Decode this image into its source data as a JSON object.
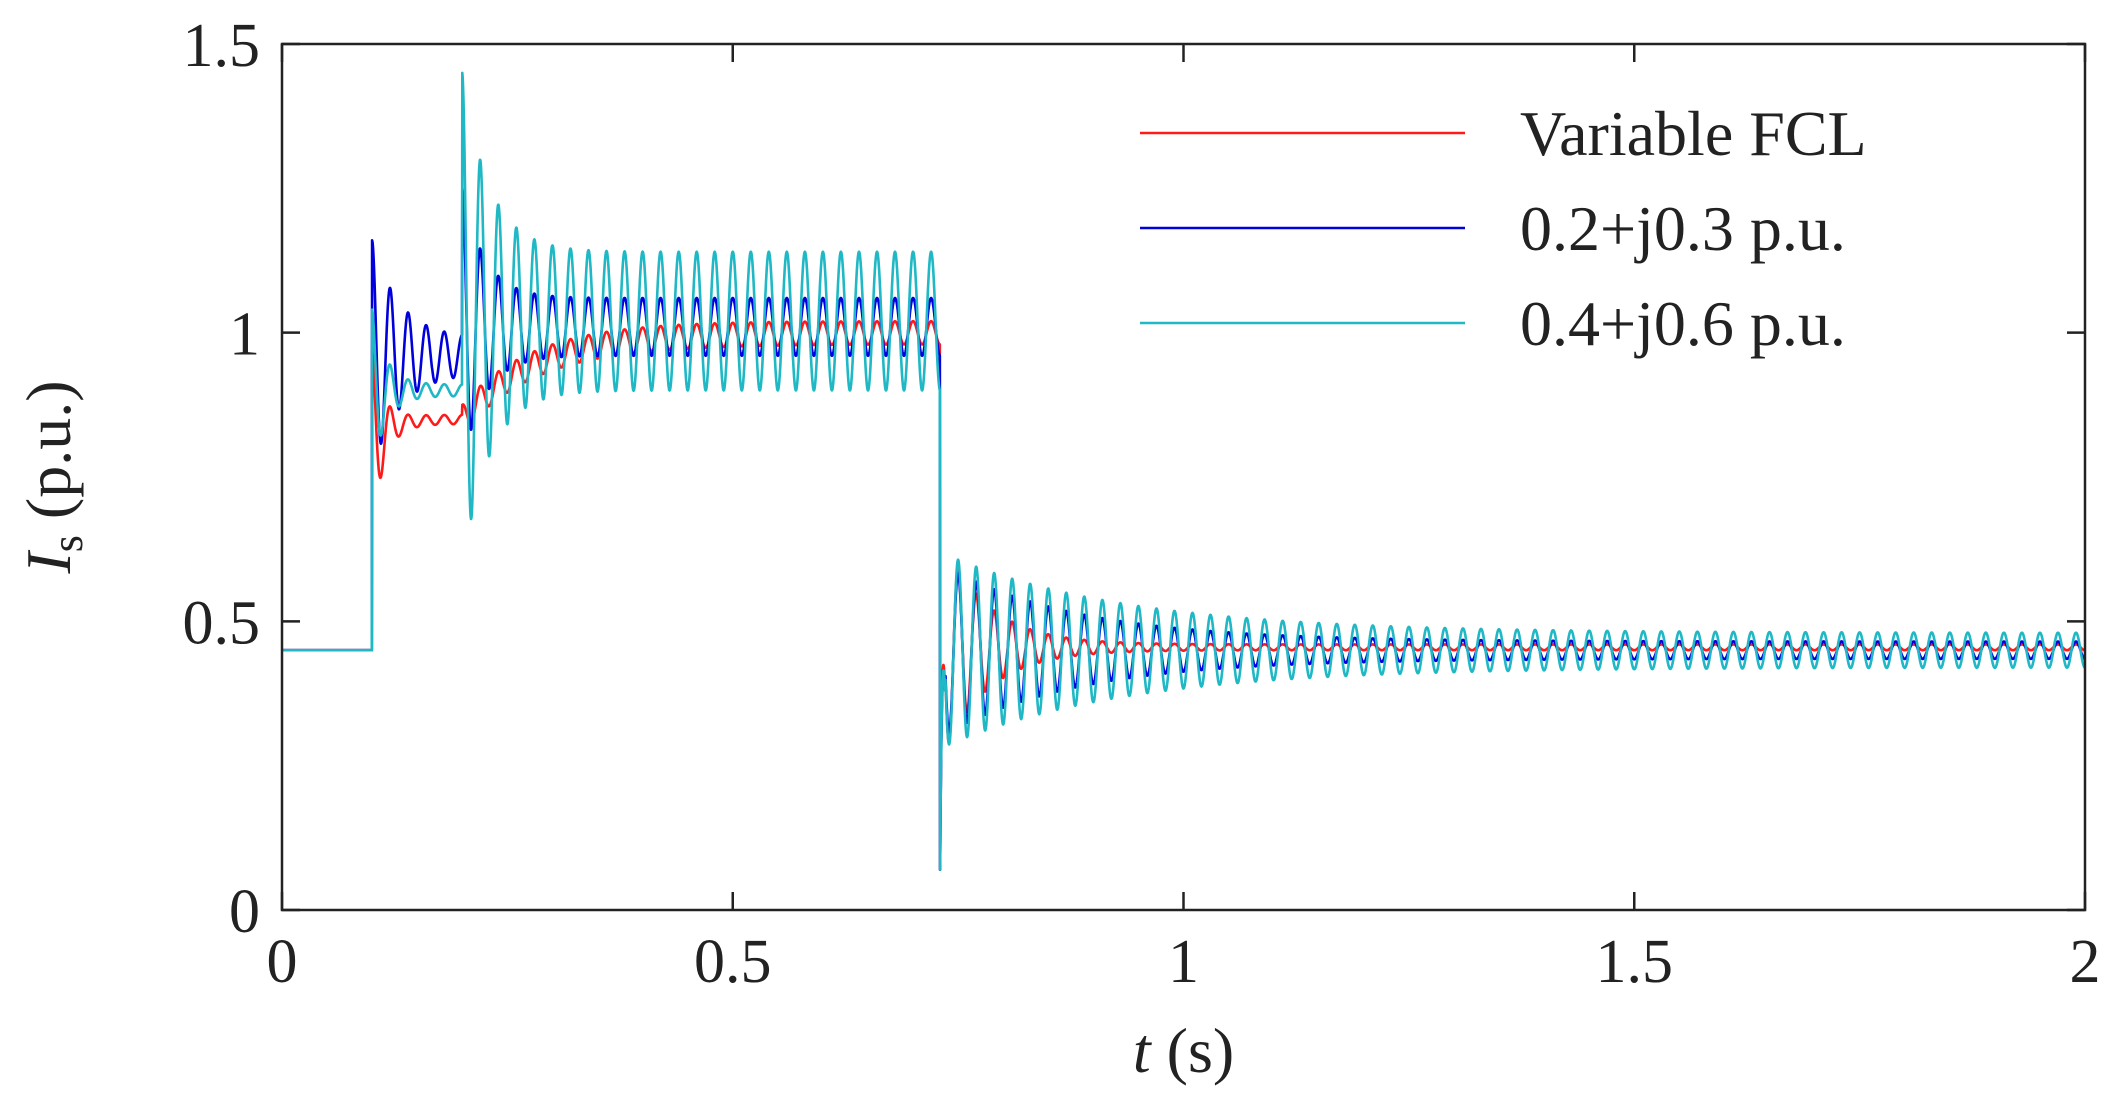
{
  "chart_data": {
    "type": "line",
    "title": "",
    "xlabel": {
      "italic": "t",
      "rest": " (s)"
    },
    "ylabel": {
      "italic": "I",
      "sub": "s",
      "rest": " (p.u.)"
    },
    "xlim": [
      0,
      2
    ],
    "ylim": [
      0,
      1.5
    ],
    "xticks": [
      0,
      0.5,
      1,
      1.5,
      2
    ],
    "yticks": [
      0,
      0.5,
      1,
      1.5
    ],
    "xtick_labels": [
      "0",
      "0.5",
      "1",
      "1.5",
      "2"
    ],
    "ytick_labels": [
      "0",
      "0.5",
      "1",
      "1.5"
    ],
    "grid": false,
    "legend_position": "top-right",
    "oscillation_frequency_hz": 50,
    "series": [
      {
        "name": "Variable FCL",
        "color": "#ff1a1a",
        "segments": [
          {
            "t0": 0,
            "t1": 0.1,
            "base": 0.45,
            "amp": 0
          },
          {
            "t0": 0.1,
            "t1": 0.2,
            "base": 0.85,
            "amp": 0.16,
            "decay": 0.012,
            "amp_end": 0.008,
            "rise_from": 0.81,
            "rise_tau": 0.02
          },
          {
            "t0": 0.2,
            "t1": 0.73,
            "base": 1.0,
            "amp": 0.025,
            "decay": 0.15,
            "amp_end": 0.02,
            "rise_from": 0.85,
            "rise_tau": 0.08
          },
          {
            "t0": 0.73,
            "t1": 2.0,
            "base": 0.455,
            "amp": 0.2,
            "decay": 0.05,
            "amp_end": 0.005,
            "dip": 0.07
          }
        ]
      },
      {
        "name": "0.2+j0.3 p.u.",
        "color": "#0000dd",
        "segments": [
          {
            "t0": 0,
            "t1": 0.1,
            "base": 0.45,
            "amp": 0
          },
          {
            "t0": 0.1,
            "t1": 0.2,
            "base": 0.96,
            "amp": 0.2,
            "decay": 0.03,
            "amp_end": 0.03
          },
          {
            "t0": 0.2,
            "t1": 0.73,
            "base": 1.01,
            "amp": 0.24,
            "decay": 0.025,
            "amp_end": 0.05
          },
          {
            "t0": 0.73,
            "t1": 2.0,
            "base": 0.45,
            "amp": 0.15,
            "decay": 0.15,
            "amp_end": 0.015,
            "dip": 0.07
          }
        ]
      },
      {
        "name": "0.4+j0.6 p.u.",
        "color": "#1fb8c4",
        "segments": [
          {
            "t0": 0,
            "t1": 0.1,
            "base": 0.45,
            "amp": 0
          },
          {
            "t0": 0.1,
            "t1": 0.2,
            "base": 0.9,
            "amp": 0.14,
            "decay": 0.015,
            "amp_end": 0.01
          },
          {
            "t0": 0.2,
            "t1": 0.73,
            "base": 1.02,
            "amp": 0.43,
            "decay": 0.03,
            "amp_end": 0.12
          },
          {
            "t0": 0.73,
            "t1": 2.0,
            "base": 0.45,
            "amp": 0.17,
            "decay": 0.2,
            "amp_end": 0.03,
            "dip": 0.07
          }
        ]
      }
    ]
  }
}
